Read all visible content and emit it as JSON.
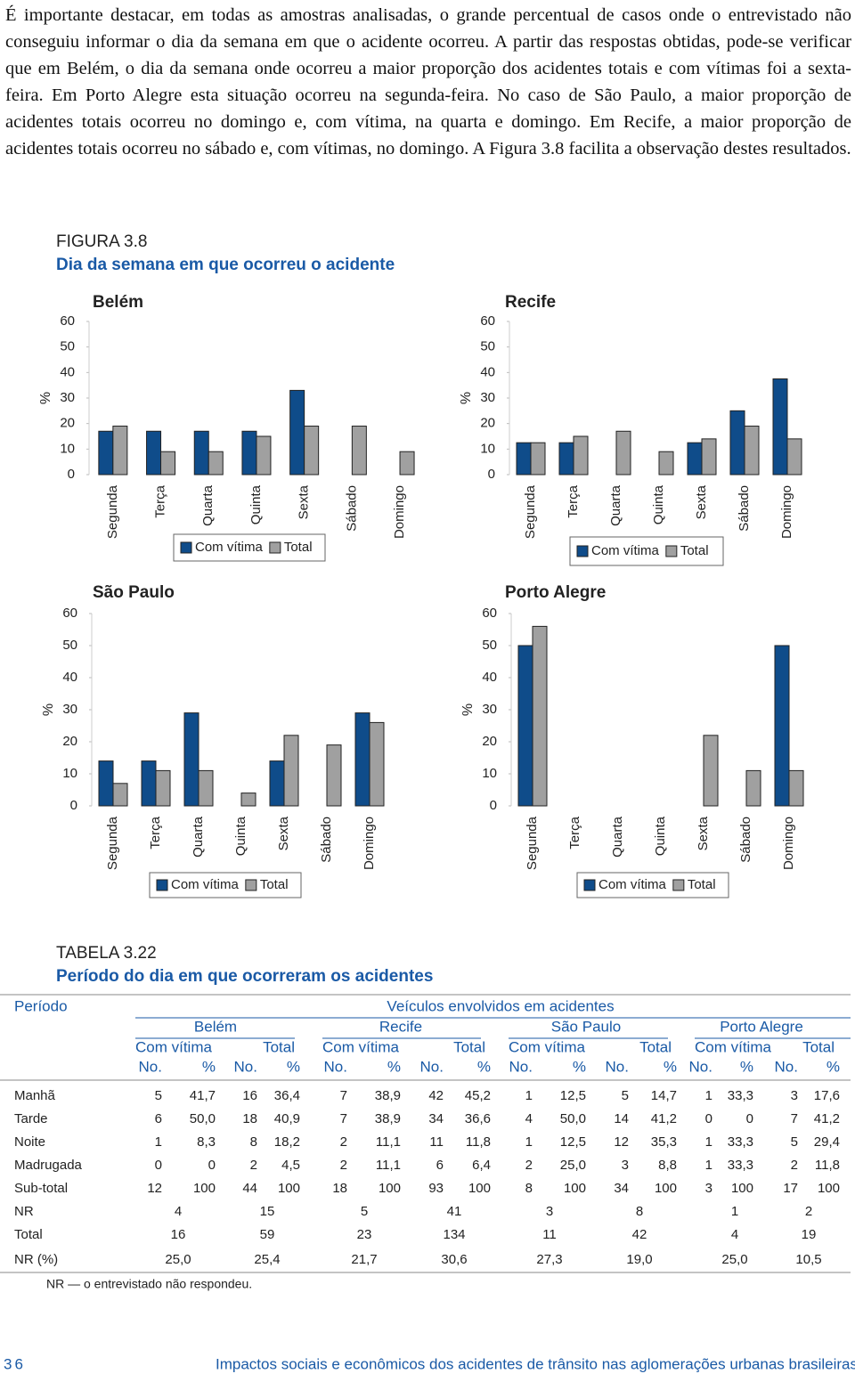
{
  "paragraph": "É importante destacar, em todas as amostras analisadas, o grande percentual de casos onde o entrevistado não conseguiu informar o dia da semana em que o acidente ocorreu. A partir das respostas obtidas, pode-se verificar que em Belém, o dia da semana onde ocorreu a maior proporção dos acidentes totais e com vítimas foi a sexta-feira. Em Porto Alegre esta situação ocorreu na segunda-feira. No caso de São Paulo, a maior proporção de acidentes totais ocorreu no domingo e, com vítima, na quarta e domingo. Em Recife, a maior proporção de acidentes totais ocorreu no sábado e, com vítimas, no domingo. A Figura 3.8 facilita a observação destes resultados.",
  "figure": {
    "label": "FIGURA 3.8",
    "title": "Dia da semana em que ocorreu o acidente"
  },
  "chart_data": [
    {
      "type": "bar",
      "title": "Belém",
      "ylabel": "%",
      "categories": [
        "Segunda",
        "Terça",
        "Quarta",
        "Quinta",
        "Sexta",
        "Sábado",
        "Domingo"
      ],
      "series": [
        {
          "name": "Com vítima",
          "color": "#0f4c8a",
          "values": [
            17,
            17,
            17,
            17,
            33,
            0,
            0
          ]
        },
        {
          "name": "Total",
          "color": "#a0a0a0",
          "values": [
            19,
            9,
            9,
            15,
            19,
            19,
            9
          ]
        }
      ],
      "ylim": [
        0,
        60
      ],
      "yticks": [
        0,
        10,
        20,
        30,
        40,
        50,
        60
      ]
    },
    {
      "type": "bar",
      "title": "Recife",
      "ylabel": "%",
      "categories": [
        "Segunda",
        "Terça",
        "Quarta",
        "Quinta",
        "Sexta",
        "Sábado",
        "Domingo"
      ],
      "series": [
        {
          "name": "Com vítima",
          "color": "#0f4c8a",
          "values": [
            12.5,
            12.5,
            0,
            0,
            12.5,
            25,
            37.5
          ]
        },
        {
          "name": "Total",
          "color": "#a0a0a0",
          "values": [
            12.5,
            15,
            17,
            9,
            14,
            19,
            14
          ]
        }
      ],
      "ylim": [
        0,
        60
      ],
      "yticks": [
        0,
        10,
        20,
        30,
        40,
        50,
        60
      ]
    },
    {
      "type": "bar",
      "title": "São Paulo",
      "ylabel": "%",
      "categories": [
        "Segunda",
        "Terça",
        "Quarta",
        "Quinta",
        "Sexta",
        "Sábado",
        "Domingo"
      ],
      "series": [
        {
          "name": "Com vítima",
          "color": "#0f4c8a",
          "values": [
            14,
            14,
            29,
            0,
            14,
            0,
            29
          ]
        },
        {
          "name": "Total",
          "color": "#a0a0a0",
          "values": [
            7,
            11,
            11,
            4,
            22,
            19,
            26
          ]
        }
      ],
      "ylim": [
        0,
        60
      ],
      "yticks": [
        0,
        10,
        20,
        30,
        40,
        50,
        60
      ]
    },
    {
      "type": "bar",
      "title": "Porto Alegre",
      "ylabel": "%",
      "categories": [
        "Segunda",
        "Terça",
        "Quarta",
        "Quinta",
        "Sexta",
        "Sábado",
        "Domingo"
      ],
      "series": [
        {
          "name": "Com vítima",
          "color": "#0f4c8a",
          "values": [
            50,
            0,
            0,
            0,
            0,
            0,
            50
          ]
        },
        {
          "name": "Total",
          "color": "#a0a0a0",
          "values": [
            56,
            0,
            0,
            0,
            22,
            11,
            11
          ]
        }
      ],
      "ylim": [
        0,
        60
      ],
      "yticks": [
        0,
        10,
        20,
        30,
        40,
        50,
        60
      ]
    }
  ],
  "table": {
    "label": "TABELA 3.22",
    "title": "Período do dia em que ocorreram os acidentes",
    "stub_header": "Período",
    "group_header": "Veículos envolvidos em acidentes",
    "cities": [
      "Belém",
      "Recife",
      "São Paulo",
      "Porto Alegre"
    ],
    "subheaders": [
      "Com vítima",
      "Total"
    ],
    "columns": [
      "No.",
      "%"
    ],
    "rows": [
      [
        "Manhã",
        "5",
        "41,7",
        "16",
        "36,4",
        "7",
        "38,9",
        "42",
        "45,2",
        "1",
        "12,5",
        "5",
        "14,7",
        "1",
        "33,3",
        "3",
        "17,6"
      ],
      [
        "Tarde",
        "6",
        "50,0",
        "18",
        "40,9",
        "7",
        "38,9",
        "34",
        "36,6",
        "4",
        "50,0",
        "14",
        "41,2",
        "0",
        "0",
        "7",
        "41,2"
      ],
      [
        "Noite",
        "1",
        "8,3",
        "8",
        "18,2",
        "2",
        "11,1",
        "11",
        "11,8",
        "1",
        "12,5",
        "12",
        "35,3",
        "1",
        "33,3",
        "5",
        "29,4"
      ],
      [
        "Madrugada",
        "0",
        "0",
        "2",
        "4,5",
        "2",
        "11,1",
        "6",
        "6,4",
        "2",
        "25,0",
        "3",
        "8,8",
        "1",
        "33,3",
        "2",
        "11,8"
      ],
      [
        "Sub-total",
        "12",
        "100",
        "44",
        "100",
        "18",
        "100",
        "93",
        "100",
        "8",
        "100",
        "34",
        "100",
        "3",
        "100",
        "17",
        "100"
      ]
    ],
    "summary_rows": [
      [
        "NR",
        "4",
        "15",
        "5",
        "41",
        "3",
        "8",
        "1",
        "2"
      ],
      [
        "Total",
        "16",
        "59",
        "23",
        "134",
        "11",
        "42",
        "4",
        "19"
      ],
      [
        "NR (%)",
        "25,0",
        "25,4",
        "21,7",
        "30,6",
        "27,3",
        "19,0",
        "25,0",
        "10,5"
      ]
    ],
    "note": "NR — o entrevistado não respondeu."
  },
  "footer": {
    "page": "36",
    "text": "Impactos sociais e econômicos dos acidentes de trânsito nas aglomerações urbanas brasileiras"
  }
}
